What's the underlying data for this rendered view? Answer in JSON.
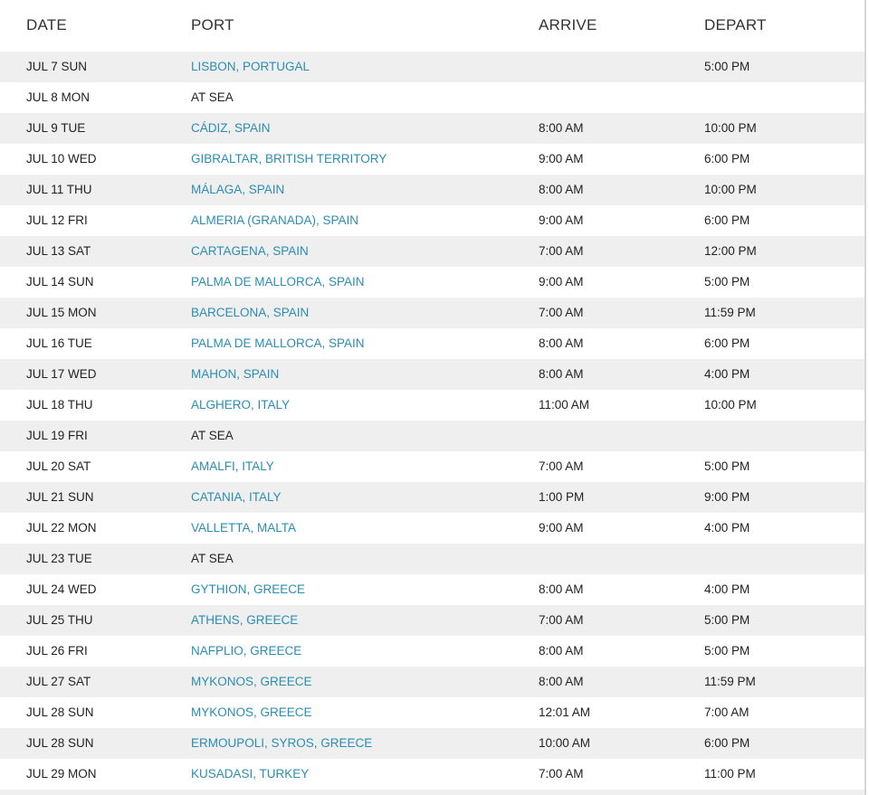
{
  "headers": {
    "date": "DATE",
    "port": "PORT",
    "arrive": "ARRIVE",
    "depart": "DEPART"
  },
  "link_color": "#2a8db3",
  "rows": [
    {
      "date": "JUL 7 SUN",
      "port": "LISBON, PORTUGAL",
      "arrive": "",
      "depart": "5:00 PM",
      "link": true
    },
    {
      "date": "JUL 8 MON",
      "port": "AT SEA",
      "arrive": "",
      "depart": "",
      "link": false
    },
    {
      "date": "JUL 9 TUE",
      "port": "CÁDIZ, SPAIN",
      "arrive": "8:00 AM",
      "depart": "10:00 PM",
      "link": true
    },
    {
      "date": "JUL 10 WED",
      "port": "GIBRALTAR, BRITISH TERRITORY",
      "arrive": "9:00 AM",
      "depart": "6:00 PM",
      "link": true
    },
    {
      "date": "JUL 11 THU",
      "port": "MÁLAGA, SPAIN",
      "arrive": "8:00 AM",
      "depart": "10:00 PM",
      "link": true
    },
    {
      "date": "JUL 12 FRI",
      "port": "ALMERIA (GRANADA), SPAIN",
      "arrive": "9:00 AM",
      "depart": "6:00 PM",
      "link": true
    },
    {
      "date": "JUL 13 SAT",
      "port": "CARTAGENA, SPAIN",
      "arrive": "7:00 AM",
      "depart": "12:00 PM",
      "link": true
    },
    {
      "date": "JUL 14 SUN",
      "port": "PALMA DE MALLORCA, SPAIN",
      "arrive": "9:00 AM",
      "depart": "5:00 PM",
      "link": true
    },
    {
      "date": "JUL 15 MON",
      "port": "BARCELONA, SPAIN",
      "arrive": "7:00 AM",
      "depart": "11:59 PM",
      "link": true
    },
    {
      "date": "JUL 16 TUE",
      "port": "PALMA DE MALLORCA, SPAIN",
      "arrive": "8:00 AM",
      "depart": "6:00 PM",
      "link": true
    },
    {
      "date": "JUL 17 WED",
      "port": "MAHON, SPAIN",
      "arrive": "8:00 AM",
      "depart": "4:00 PM",
      "link": true
    },
    {
      "date": "JUL 18 THU",
      "port": "ALGHERO, ITALY",
      "arrive": "11:00 AM",
      "depart": "10:00 PM",
      "link": true
    },
    {
      "date": "JUL 19 FRI",
      "port": "AT SEA",
      "arrive": "",
      "depart": "",
      "link": false
    },
    {
      "date": "JUL 20 SAT",
      "port": "AMALFI, ITALY",
      "arrive": "7:00 AM",
      "depart": "5:00 PM",
      "link": true
    },
    {
      "date": "JUL 21 SUN",
      "port": "CATANIA, ITALY",
      "arrive": "1:00 PM",
      "depart": "9:00 PM",
      "link": true
    },
    {
      "date": "JUL 22 MON",
      "port": "VALLETTA, MALTA",
      "arrive": "9:00 AM",
      "depart": "4:00 PM",
      "link": true
    },
    {
      "date": "JUL 23 TUE",
      "port": "AT SEA",
      "arrive": "",
      "depart": "",
      "link": false
    },
    {
      "date": "JUL 24 WED",
      "port": "GYTHION, GREECE",
      "arrive": "8:00 AM",
      "depart": "4:00 PM",
      "link": true
    },
    {
      "date": "JUL 25 THU",
      "port": "ATHENS, GREECE",
      "arrive": "7:00 AM",
      "depart": "5:00 PM",
      "link": true
    },
    {
      "date": "JUL 26 FRI",
      "port": "NAFPLIO, GREECE",
      "arrive": "8:00 AM",
      "depart": "5:00 PM",
      "link": true
    },
    {
      "date": "JUL 27 SAT",
      "port": "MYKONOS, GREECE",
      "arrive": "8:00 AM",
      "depart": "11:59 PM",
      "link": true
    },
    {
      "date": "JUL 28 SUN",
      "port": "MYKONOS, GREECE",
      "arrive": "12:01 AM",
      "depart": "7:00 AM",
      "link": true
    },
    {
      "date": "JUL 28 SUN",
      "port": "ERMOUPOLI, SYROS, GREECE",
      "arrive": "10:00 AM",
      "depart": "6:00 PM",
      "link": true
    },
    {
      "date": "JUL 29 MON",
      "port": "KUSADASI, TURKEY",
      "arrive": "7:00 AM",
      "depart": "11:00 PM",
      "link": true
    }
  ]
}
